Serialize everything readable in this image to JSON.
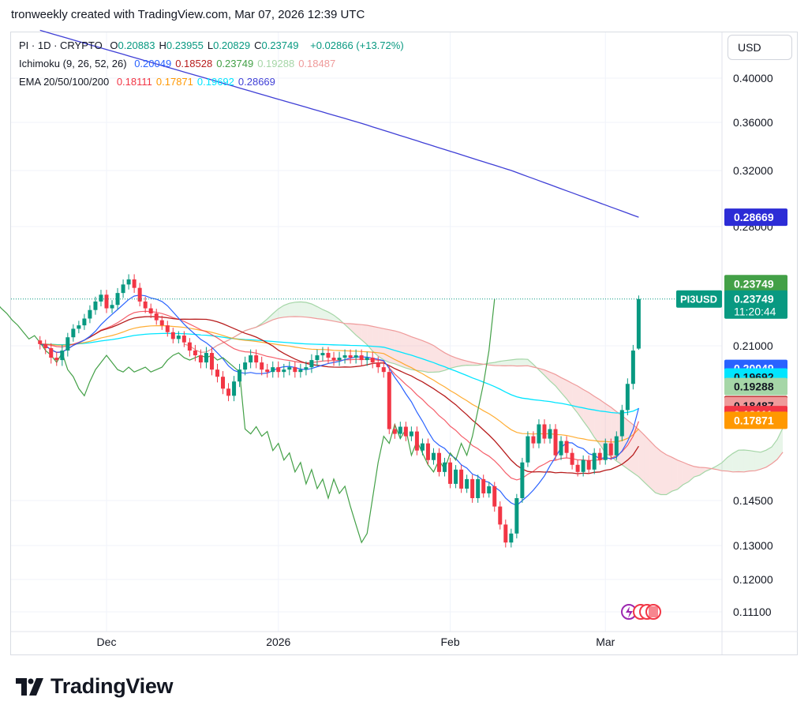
{
  "header": {
    "title": "tronweekly created with TradingView.com, Mar 07, 2026 12:39 UTC"
  },
  "toolbar": {
    "currency_label": "USD"
  },
  "legend": {
    "symbol": "PI · 1D · CRYPTO",
    "ohlc": [
      {
        "k": "O",
        "v": "0.20883"
      },
      {
        "k": "H",
        "v": "0.23955"
      },
      {
        "k": "L",
        "v": "0.20829"
      },
      {
        "k": "C",
        "v": "0.23749"
      }
    ],
    "change": "+0.02866 (+13.72%)",
    "ichimoku_label": "Ichimoku (9, 26, 52, 26)",
    "ichimoku_values": [
      "0.20049",
      "0.18528",
      "0.23749",
      "0.19288",
      "0.18487"
    ],
    "ema_label": "EMA 20/50/100/200",
    "ema_values": [
      "0.18111",
      "0.17871",
      "0.19692",
      "0.28669"
    ]
  },
  "brand": {
    "name": "TradingView"
  },
  "colors": {
    "up": "#089981",
    "down": "#f23645",
    "tenkan": "#2962ff",
    "kijun": "#b71c1c",
    "chikou": "#43a047",
    "spanA": "#a5d6a7",
    "spanB": "#ef9a9a",
    "ema20": "#f23645",
    "ema50": "#ff9800",
    "ema100": "#00e5ff",
    "ema200": "#3f3fd6"
  },
  "chart_data": {
    "type": "candlestick",
    "symbol": "PI3USD",
    "interval": "1D",
    "y_ticks": [
      0.111,
      0.12,
      0.13,
      0.145,
      0.21,
      0.28,
      0.32,
      0.36,
      0.4
    ],
    "y_tick_labels": [
      "0.11100",
      "0.12000",
      "0.13000",
      "0.14500",
      "0.21000",
      "0.28000",
      "0.32000",
      "0.36000",
      "0.40000"
    ],
    "x_ticks": [
      {
        "label": "Dec",
        "date": "2025-12-01"
      },
      {
        "label": "2026",
        "date": "2026-01-01"
      },
      {
        "label": "Feb",
        "date": "2026-02-01"
      },
      {
        "label": "Mar",
        "date": "2026-03-01"
      }
    ],
    "x_range": [
      "2025-11-12",
      "2026-04-01"
    ],
    "last_date": "2026-03-07",
    "closes": [
      0.211,
      0.209,
      0.205,
      0.204,
      0.208,
      0.215,
      0.22,
      0.222,
      0.226,
      0.231,
      0.236,
      0.24,
      0.232,
      0.234,
      0.241,
      0.246,
      0.249,
      0.244,
      0.236,
      0.232,
      0.229,
      0.225,
      0.222,
      0.218,
      0.214,
      0.216,
      0.212,
      0.208,
      0.206,
      0.203,
      0.207,
      0.2,
      0.197,
      0.192,
      0.189,
      0.195,
      0.2,
      0.203,
      0.206,
      0.203,
      0.2,
      0.199,
      0.201,
      0.199,
      0.2,
      0.201,
      0.199,
      0.2,
      0.201,
      0.204,
      0.206,
      0.207,
      0.205,
      0.204,
      0.205,
      0.206,
      0.205,
      0.206,
      0.204,
      0.205,
      0.203,
      0.201,
      0.199,
      0.175,
      0.173,
      0.176,
      0.172,
      0.174,
      0.166,
      0.169,
      0.162,
      0.165,
      0.157,
      0.161,
      0.152,
      0.158,
      0.15,
      0.154,
      0.146,
      0.154,
      0.148,
      0.151,
      0.143,
      0.137,
      0.131,
      0.134,
      0.146,
      0.161,
      0.172,
      0.169,
      0.177,
      0.171,
      0.175,
      0.164,
      0.17,
      0.165,
      0.16,
      0.157,
      0.162,
      0.158,
      0.165,
      0.162,
      0.169,
      0.164,
      0.172,
      0.183,
      0.194,
      0.208,
      0.2375
    ],
    "last_candle": {
      "open": 0.20883,
      "high": 0.23955,
      "low": 0.20829,
      "close": 0.23749
    },
    "badges": [
      {
        "label": "0.28669",
        "value": 0.28669,
        "bg": "#2c2cd6",
        "fg": "#ffffff"
      },
      {
        "label": "0.23749",
        "value": 0.2465,
        "bg": "#43a047",
        "fg": "#ffffff"
      },
      {
        "label": "0.23749",
        "sub": "11:20:44",
        "value": 0.23749,
        "bg": "#089981",
        "fg": "#ffffff",
        "symbol": "PI3USD"
      },
      {
        "label": "0.20049",
        "value": 0.20049,
        "bg": "#2962ff",
        "fg": "#ffffff"
      },
      {
        "label": "0.19692",
        "value": 0.19692,
        "bg": "#00e5ff",
        "fg": "#131722"
      },
      {
        "label": "0.19288",
        "value": 0.19288,
        "bg": "#a5d6a7",
        "fg": "#131722"
      },
      {
        "label": "0.18528",
        "value": 0.18528,
        "bg": "#b71c1c",
        "fg": "#ffffff"
      },
      {
        "label": "0.18487",
        "value": 0.18487,
        "bg": "#ef9a9a",
        "fg": "#131722"
      },
      {
        "label": "0.18111",
        "value": 0.18111,
        "bg": "#f23645",
        "fg": "#ffffff"
      },
      {
        "label": "0.17871",
        "value": 0.17871,
        "bg": "#ff9800",
        "fg": "#ffffff"
      }
    ]
  }
}
